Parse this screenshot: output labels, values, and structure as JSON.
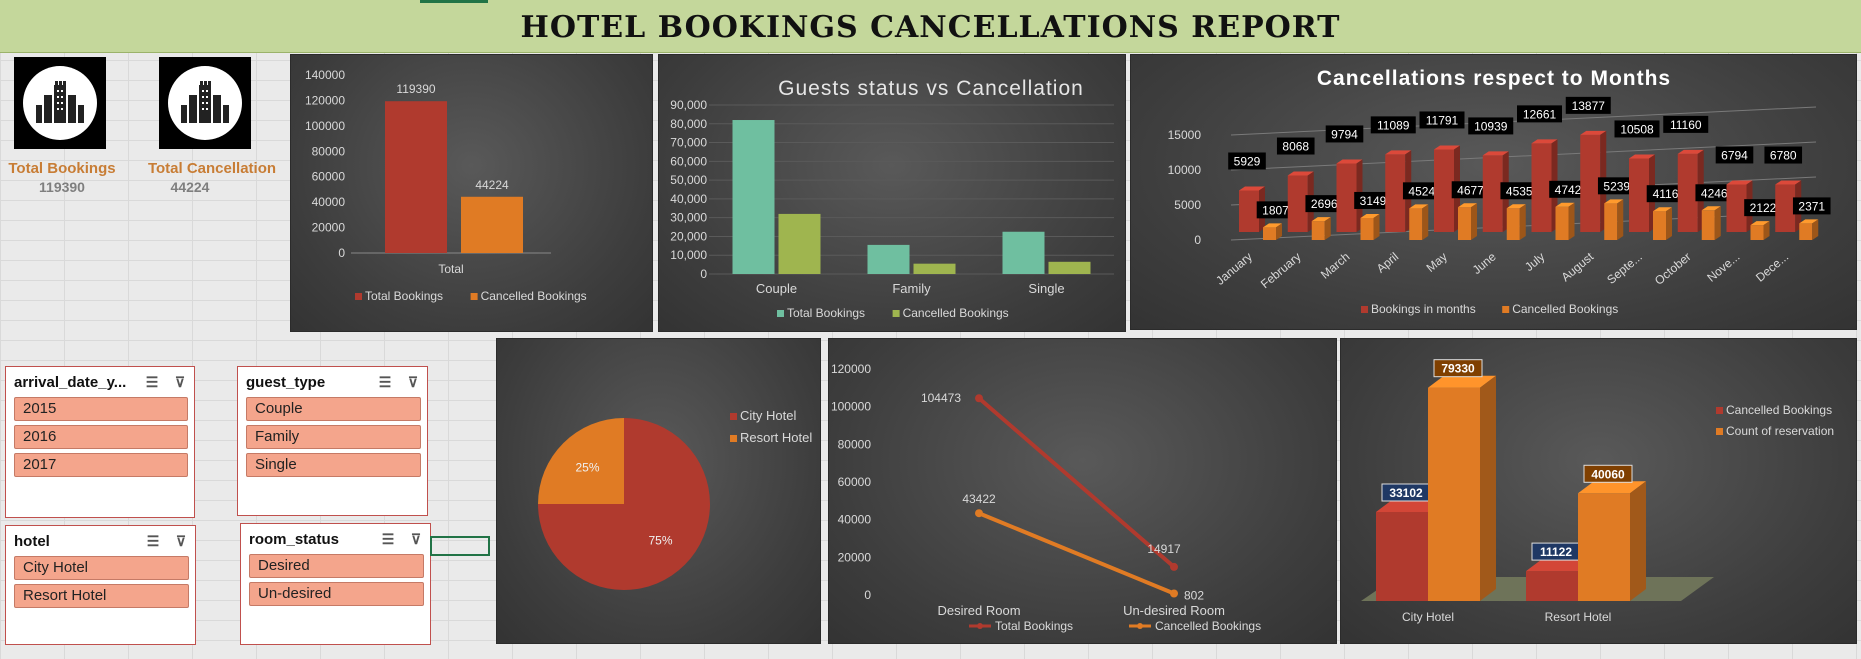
{
  "report_title": "HOTEL BOOKINGS CANCELLATIONS REPORT",
  "kpis": [
    {
      "label": "Total Bookings",
      "value": "119390",
      "icon": "hotel-building-icon"
    },
    {
      "label": "Total Cancellation",
      "value": "44224",
      "icon": "hotel-building-icon"
    }
  ],
  "colors": {
    "red": "#b03a2e",
    "orange": "#e07b24",
    "teal": "#6fbfa0",
    "olive": "#9fb54f"
  },
  "slicers": [
    {
      "id": "arrival-date-year",
      "title": "arrival_date_y...",
      "items": [
        "2015",
        "2016",
        "2017"
      ]
    },
    {
      "id": "guest-type",
      "title": "guest_type",
      "items": [
        "Couple",
        "Family",
        "Single"
      ]
    },
    {
      "id": "hotel",
      "title": "hotel",
      "items": [
        "City Hotel",
        "Resort Hotel"
      ]
    },
    {
      "id": "room-status",
      "title": "room_status",
      "items": [
        "Desired",
        "Un-desired"
      ]
    }
  ],
  "chart_data": [
    {
      "id": "total-vs-cancelled",
      "type": "bar",
      "title": "",
      "categories": [
        "Total"
      ],
      "series": [
        {
          "name": "Total Bookings",
          "values": [
            119390
          ]
        },
        {
          "name": "Cancelled Bookings",
          "values": [
            44224
          ]
        }
      ],
      "ylim": [
        0,
        140000
      ],
      "yticks": [
        "0",
        "20000",
        "40000",
        "60000",
        "80000",
        "100000",
        "120000",
        "140000"
      ],
      "data_labels": [
        "119390",
        "44224"
      ],
      "legend": "bottom",
      "grid": false
    },
    {
      "id": "guests-status",
      "type": "bar",
      "title": "Guests status vs Cancellation",
      "categories": [
        "Couple",
        "Family",
        "Single"
      ],
      "series": [
        {
          "name": "Total Bookings",
          "values": [
            82000,
            15500,
            22500
          ]
        },
        {
          "name": "Cancelled Bookings",
          "values": [
            32000,
            5500,
            6500
          ]
        }
      ],
      "ylim": [
        0,
        90000
      ],
      "yticks": [
        "0",
        "10,000",
        "20,000",
        "30,000",
        "40,000",
        "50,000",
        "60,000",
        "70,000",
        "80,000",
        "90,000"
      ],
      "legend": "bottom",
      "grid": true
    },
    {
      "id": "cancellations-by-month",
      "type": "bar",
      "title": "Cancellations respect to Months",
      "categories": [
        "January",
        "February",
        "March",
        "April",
        "May",
        "June",
        "July",
        "August",
        "Septe...",
        "October",
        "Nove...",
        "Dece..."
      ],
      "series": [
        {
          "name": "Bookings in months",
          "values": [
            5929,
            8068,
            9794,
            11089,
            11791,
            10939,
            12661,
            13877,
            10508,
            11160,
            6794,
            6780
          ]
        },
        {
          "name": "Cancelled Bookings",
          "values": [
            1807,
            2696,
            3149,
            4524,
            4677,
            4535,
            4742,
            5239,
            4116,
            4246,
            2122,
            2371
          ]
        }
      ],
      "ylim": [
        0,
        15000
      ],
      "yticks": [
        "0",
        "5000",
        "10000",
        "15000"
      ],
      "legend": "bottom",
      "grid": true
    },
    {
      "id": "hotel-share",
      "type": "pie",
      "title": "",
      "categories": [
        "City Hotel",
        "Resort Hotel"
      ],
      "values": [
        75,
        25
      ],
      "data_labels": [
        "75%",
        "25%"
      ],
      "legend": "right"
    },
    {
      "id": "room-status-line",
      "type": "line",
      "title": "",
      "categories": [
        "Desired Room",
        "Un-desired Room"
      ],
      "series": [
        {
          "name": "Total Bookings",
          "values": [
            104473,
            14917
          ]
        },
        {
          "name": "Cancelled Bookings",
          "values": [
            43422,
            802
          ]
        }
      ],
      "ylim": [
        0,
        120000
      ],
      "yticks": [
        "0",
        "20000",
        "40000",
        "60000",
        "80000",
        "100000",
        "120000"
      ],
      "legend": "bottom",
      "grid": false
    },
    {
      "id": "hotel-cancellations",
      "type": "bar",
      "title": "",
      "categories": [
        "City Hotel",
        "Resort Hotel"
      ],
      "series": [
        {
          "name": "Cancelled Bookings",
          "values": [
            33102,
            11122
          ]
        },
        {
          "name": "Count of reservation",
          "values": [
            79330,
            40060
          ]
        }
      ],
      "ylim": [
        0,
        90000
      ],
      "legend": "right",
      "grid": false
    }
  ]
}
